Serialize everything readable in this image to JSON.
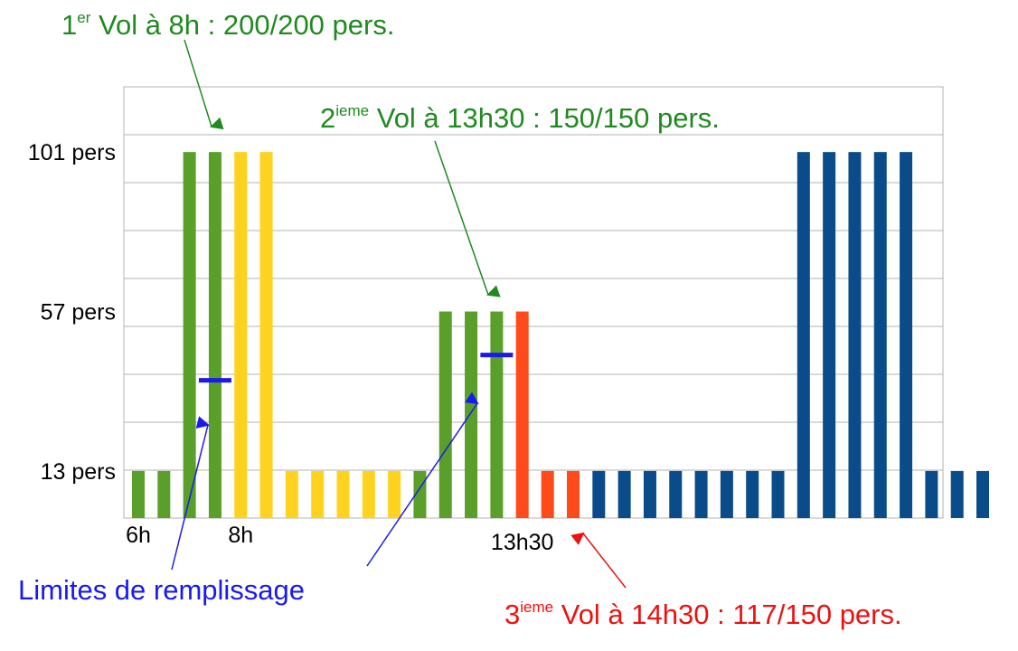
{
  "chart_data": {
    "type": "bar",
    "y_ticks": [
      "101 pers",
      "57 pers",
      "13 pers"
    ],
    "y_tick_values": [
      101,
      57,
      13
    ],
    "x_tick_labels": [
      {
        "label": "6h",
        "index": 0
      },
      {
        "label": "8h",
        "index": 4
      },
      {
        "label": "13h30",
        "index": 15
      }
    ],
    "values": [
      13,
      13,
      101,
      101,
      101,
      101,
      13,
      13,
      13,
      13,
      13,
      13,
      57,
      57,
      57,
      57,
      13,
      13,
      13,
      13,
      13,
      13,
      13,
      13,
      13,
      13,
      101,
      101,
      101,
      101,
      101,
      13,
      13,
      13
    ],
    "groups": [
      "vol1",
      "vol1",
      "vol1",
      "vol1",
      "jaune",
      "jaune",
      "jaune",
      "jaune",
      "jaune",
      "jaune",
      "jaune",
      "vol2",
      "vol2",
      "vol2",
      "vol2",
      "vol3",
      "vol3",
      "vol3",
      "bleu",
      "bleu",
      "bleu",
      "bleu",
      "bleu",
      "bleu",
      "bleu",
      "bleu",
      "bleu",
      "bleu",
      "bleu",
      "bleu",
      "bleu",
      "bleu",
      "bleu",
      "bleu"
    ],
    "colors": {
      "vol1": "#5a9f2a",
      "vol2": "#5a9f2a",
      "jaune": "#ffd21f",
      "vol3": "#ff4a1c",
      "bleu": "#0a4c8a",
      "limit": "#1a1aee"
    },
    "fill_limits": [
      {
        "bar_index": 3,
        "value": 38
      },
      {
        "bar_index": 14,
        "value": 45
      }
    ],
    "ylim": [
      0,
      119
    ],
    "grid": true,
    "annotations": {
      "vol1": {
        "num": "1",
        "sup": "er",
        "text": " Vol à 8h : 200/200 pers.",
        "color": "#1f8a1f"
      },
      "vol2": {
        "num": "2",
        "sup": "ieme",
        "text": " Vol à 13h30 : 150/150 pers.",
        "color": "#1f8a1f"
      },
      "vol3": {
        "num": "3",
        "sup": "ieme",
        "text": " Vol à 14h30 : 117/150 pers.",
        "color": "#ee1111"
      },
      "limits": {
        "text": "Limites de remplissage",
        "color": "#1a1aee"
      }
    }
  }
}
